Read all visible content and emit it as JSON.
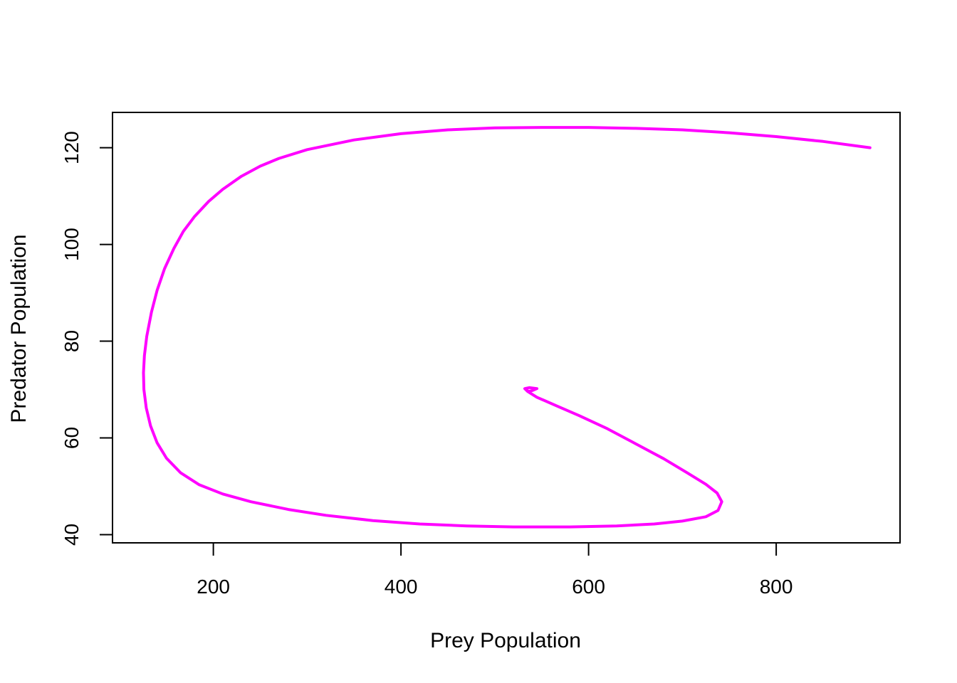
{
  "chart_data": {
    "type": "line",
    "title": "",
    "xlabel": "Prey Population",
    "ylabel": "Predator Population",
    "xlim": [
      92.5,
      932
    ],
    "ylim": [
      38.3,
      127.3
    ],
    "grid": false,
    "legend": "none",
    "x_ticks": [
      200,
      400,
      600,
      800
    ],
    "y_ticks": [
      40,
      60,
      80,
      100,
      120
    ],
    "series": [
      {
        "color": "#ff00ff",
        "points": [
          [
            900,
            120
          ],
          [
            850,
            121.3
          ],
          [
            800,
            122.3
          ],
          [
            750,
            123.1
          ],
          [
            700,
            123.7
          ],
          [
            650,
            124
          ],
          [
            600,
            124.2
          ],
          [
            550,
            124.2
          ],
          [
            500,
            124.1
          ],
          [
            450,
            123.7
          ],
          [
            400,
            122.9
          ],
          [
            350,
            121.6
          ],
          [
            300,
            119.6
          ],
          [
            270,
            117.8
          ],
          [
            250,
            116.2
          ],
          [
            230,
            114.1
          ],
          [
            210,
            111.4
          ],
          [
            195,
            108.9
          ],
          [
            180,
            105.8
          ],
          [
            168,
            102.7
          ],
          [
            158,
            99.2
          ],
          [
            148,
            95.0
          ],
          [
            140,
            90.5
          ],
          [
            134,
            86.0
          ],
          [
            129,
            81.0
          ],
          [
            126.5,
            77.0
          ],
          [
            125.5,
            73.5
          ],
          [
            126,
            70.0
          ],
          [
            128.5,
            66.2
          ],
          [
            133,
            62.5
          ],
          [
            140,
            59.0
          ],
          [
            150,
            55.8
          ],
          [
            165,
            52.8
          ],
          [
            185,
            50.3
          ],
          [
            210,
            48.4
          ],
          [
            240,
            46.8
          ],
          [
            280,
            45.2
          ],
          [
            320,
            44.0
          ],
          [
            370,
            42.9
          ],
          [
            420,
            42.2
          ],
          [
            470,
            41.8
          ],
          [
            520,
            41.6
          ],
          [
            580,
            41.6
          ],
          [
            630,
            41.8
          ],
          [
            670,
            42.2
          ],
          [
            700,
            42.8
          ],
          [
            725,
            43.7
          ],
          [
            738,
            45.0
          ],
          [
            742,
            46.8
          ],
          [
            737,
            48.6
          ],
          [
            725,
            50.4
          ],
          [
            705,
            52.8
          ],
          [
            680,
            55.7
          ],
          [
            650,
            58.8
          ],
          [
            620,
            61.9
          ],
          [
            590,
            64.6
          ],
          [
            565,
            66.7
          ],
          [
            545,
            68.4
          ],
          [
            535,
            69.6
          ],
          [
            532,
            70.2
          ],
          [
            537,
            70.4
          ],
          [
            545,
            70.2
          ],
          [
            540,
            69.8
          ],
          [
            536,
            69.6
          ],
          [
            534,
            69.9
          ]
        ]
      }
    ]
  }
}
